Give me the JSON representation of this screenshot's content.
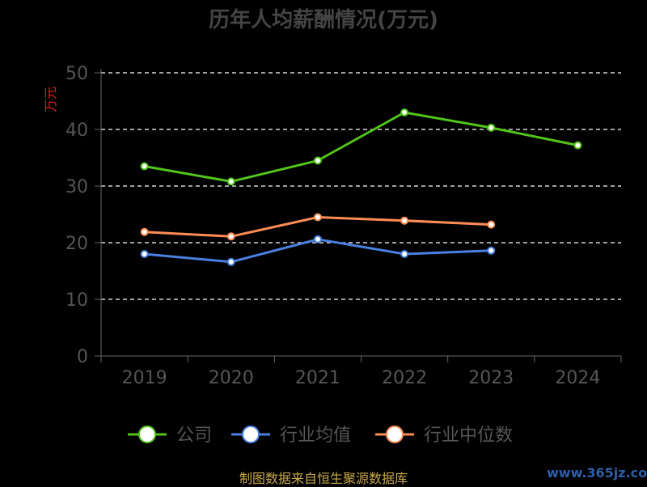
{
  "chart_data": {
    "type": "line",
    "title": "历年人均薪酬情况(万元)",
    "ylabel": "万元",
    "categories": [
      "2019",
      "2020",
      "2021",
      "2022",
      "2023",
      "2024"
    ],
    "ylim": [
      0,
      50
    ],
    "yticks": [
      0,
      10,
      20,
      30,
      40,
      50
    ],
    "grid": true,
    "legend_position": "bottom",
    "series": [
      {
        "name": "公司",
        "color": "#52c41a",
        "values": [
          33.5,
          30.8,
          34.5,
          43.0,
          40.3,
          37.2
        ]
      },
      {
        "name": "行业均值",
        "color": "#4a80e0",
        "values": [
          18.0,
          16.6,
          20.6,
          18.0,
          18.6,
          null
        ]
      },
      {
        "name": "行业中位数",
        "color": "#ff8c55",
        "values": [
          21.9,
          21.1,
          24.5,
          23.9,
          23.2,
          null
        ]
      }
    ]
  },
  "footer": {
    "source": "制图数据来自恒生聚源数据库",
    "watermark": "www.365jz.com"
  }
}
